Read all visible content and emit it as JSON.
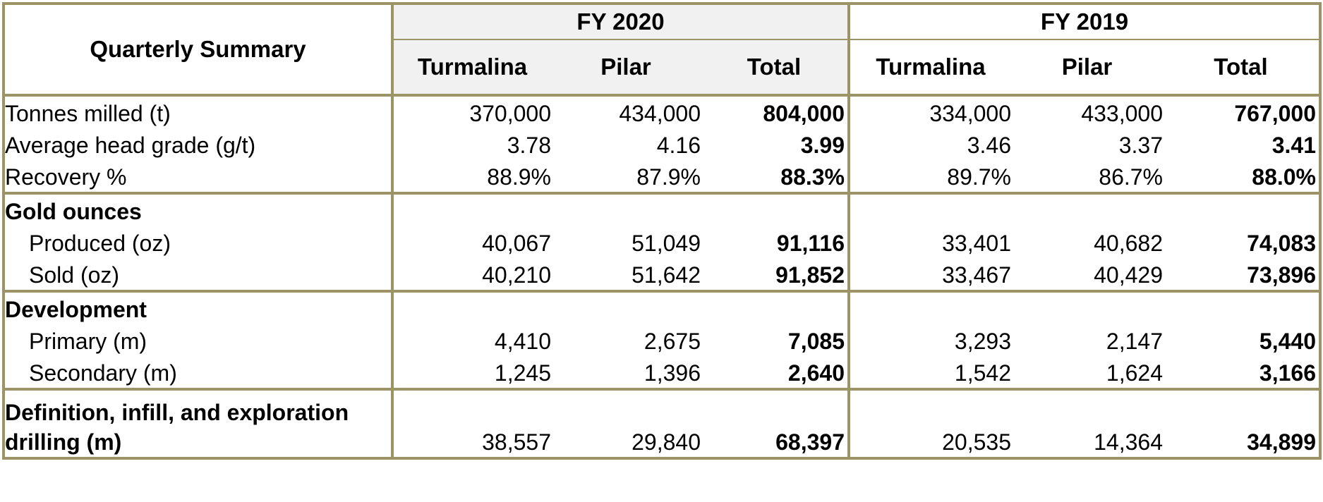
{
  "header": {
    "title": "Quarterly Summary",
    "years": [
      "FY 2020",
      "FY 2019"
    ],
    "columns": [
      "Turmalina",
      "Pilar",
      "Total"
    ]
  },
  "rows": {
    "tonnes": {
      "label": "Tonnes milled (t)",
      "v": [
        "370,000",
        "434,000",
        "804,000",
        "334,000",
        "433,000",
        "767,000"
      ]
    },
    "grade": {
      "label": "Average head grade (g/t)",
      "v": [
        "3.78",
        "4.16",
        "3.99",
        "3.46",
        "3.37",
        "3.41"
      ]
    },
    "recovery": {
      "label": "Recovery %",
      "v": [
        "88.9%",
        "87.9%",
        "88.3%",
        "89.7%",
        "86.7%",
        "88.0%"
      ]
    },
    "gold_head": {
      "label": "Gold ounces"
    },
    "produced": {
      "label": "Produced (oz)",
      "v": [
        "40,067",
        "51,049",
        "91,116",
        "33,401",
        "40,682",
        "74,083"
      ]
    },
    "sold": {
      "label": "Sold (oz)",
      "v": [
        "40,210",
        "51,642",
        "91,852",
        "33,467",
        "40,429",
        "73,896"
      ]
    },
    "dev_head": {
      "label": "Development"
    },
    "primary": {
      "label": "Primary (m)",
      "v": [
        "4,410",
        "2,675",
        "7,085",
        "3,293",
        "2,147",
        "5,440"
      ]
    },
    "secondary": {
      "label": "Secondary (m)",
      "v": [
        "1,245",
        "1,396",
        "2,640",
        "1,542",
        "1,624",
        "3,166"
      ]
    },
    "drilling": {
      "label": "Definition, infill, and exploration drilling (m)",
      "v": [
        "38,557",
        "29,840",
        "68,397",
        "20,535",
        "14,364",
        "34,899"
      ]
    }
  },
  "colors": {
    "border": "#9c9466",
    "header_shade": "#f1f1f1"
  }
}
